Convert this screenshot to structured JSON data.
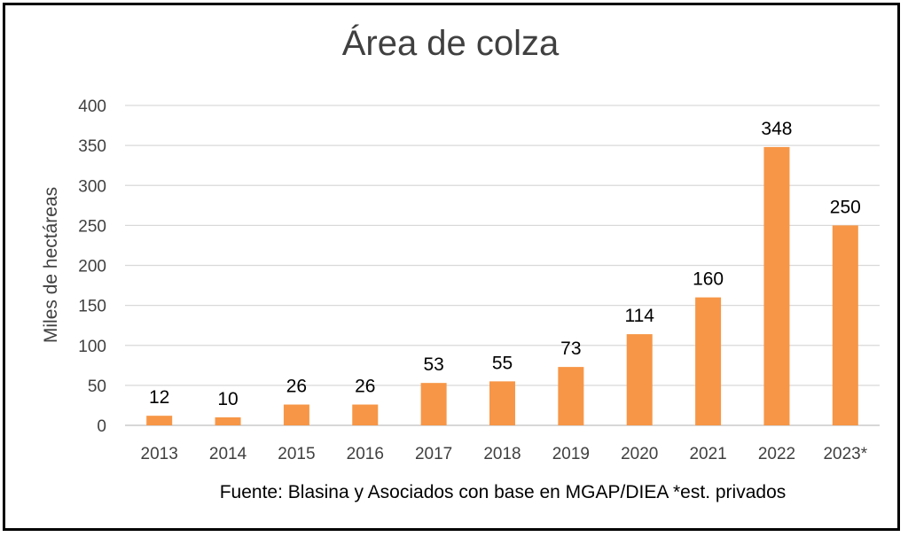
{
  "chart_data": {
    "type": "bar",
    "title": "Área de colza",
    "ylabel": "Miles de hectáreas",
    "xlabel": "",
    "categories": [
      "2013",
      "2014",
      "2015",
      "2016",
      "2017",
      "2018",
      "2019",
      "2020",
      "2021",
      "2022",
      "2023*"
    ],
    "values": [
      12,
      10,
      26,
      26,
      53,
      55,
      73,
      114,
      160,
      348,
      250
    ],
    "data_labels": [
      "12",
      "10",
      "26",
      "26",
      "53",
      "55",
      "73",
      "114",
      "160",
      "348",
      "250"
    ],
    "ylim": [
      0,
      400
    ],
    "yticks": [
      0,
      50,
      100,
      150,
      200,
      250,
      300,
      350,
      400
    ],
    "ytick_labels": [
      "0",
      "50",
      "100",
      "150",
      "200",
      "250",
      "300",
      "350",
      "400"
    ],
    "grid": true,
    "legend": "none",
    "colors": {
      "bar": "#F79646",
      "grid": "#D9D9D9",
      "text": "#404040",
      "border": "#000000"
    }
  },
  "source_note": "Fuente: Blasina y Asociados con base en MGAP/DIEA *est. privados"
}
